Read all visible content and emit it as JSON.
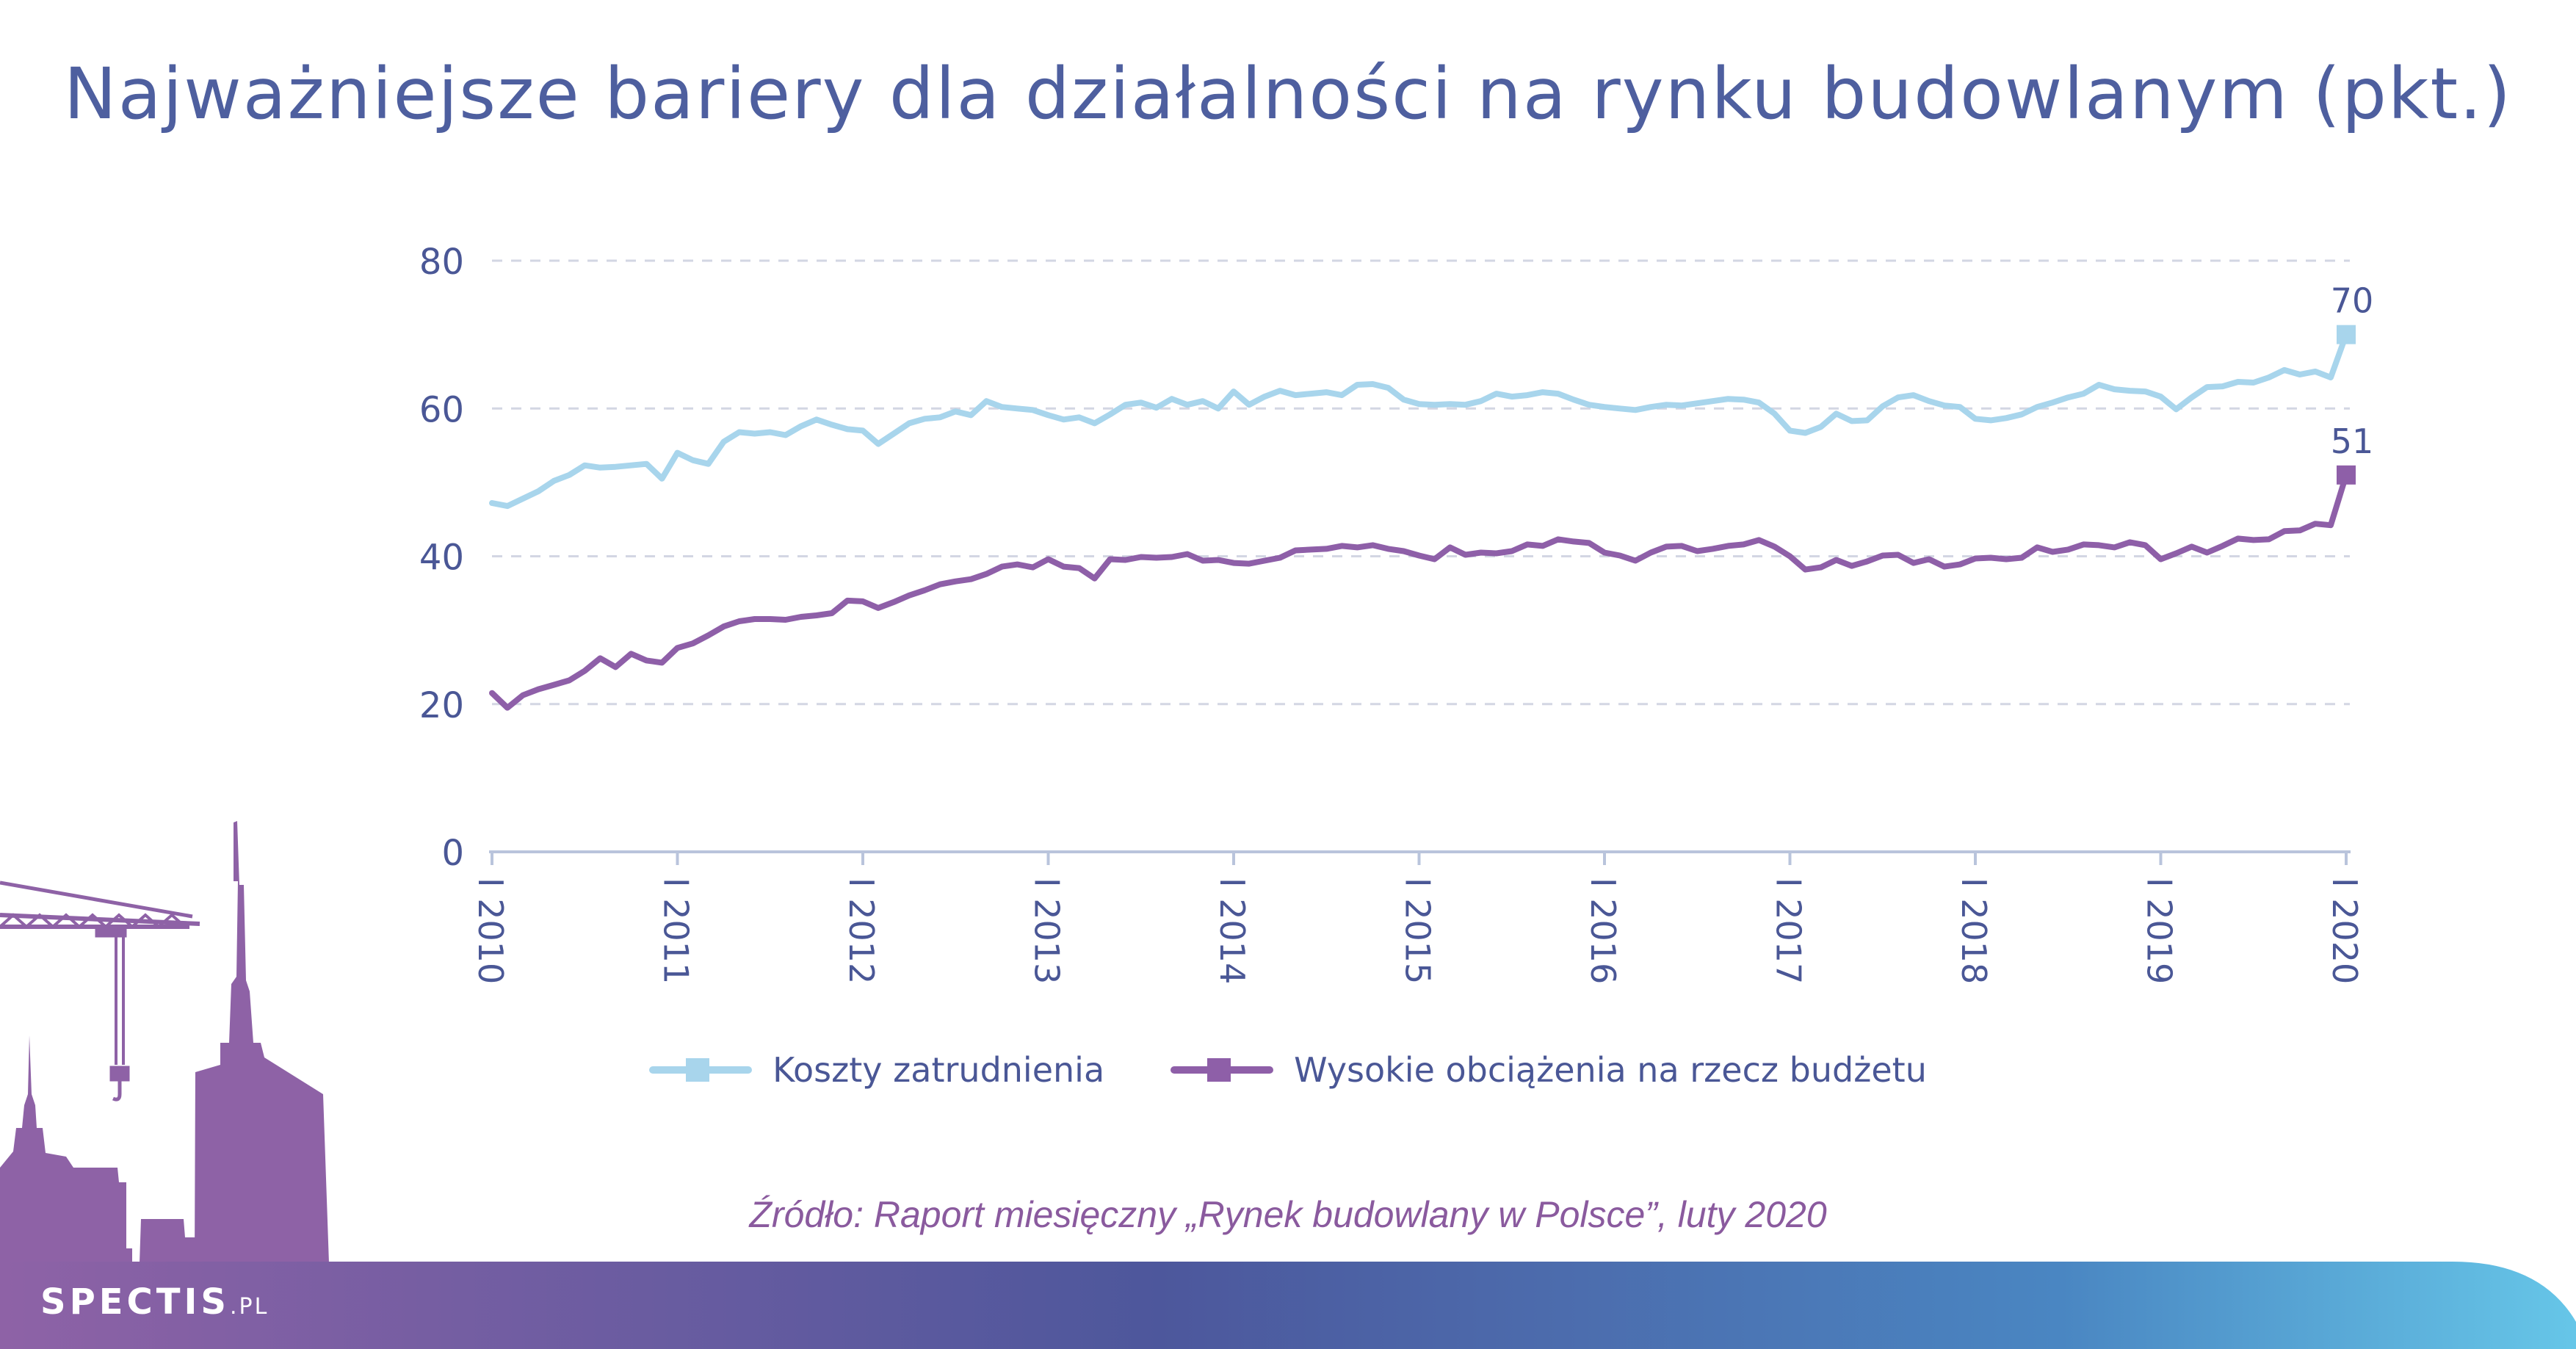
{
  "title": "Najważniejsze bariery dla działalności na rynku budowlanym (pkt.)",
  "source": "Źródło: Raport miesięczny „Rynek budowlany w Polsce”, luty 2020",
  "brand": {
    "name": "SPECTIS",
    "tld": ".PL"
  },
  "colors": {
    "title": "#4e5f9f",
    "series1": "#a8d5ec",
    "series2": "#8e5fa8",
    "axis": "#b9c4dc",
    "grid": "#d3d6e3",
    "ticks": "#4a5796",
    "source": "#8a5a9e"
  },
  "chart_data": {
    "type": "line",
    "title": "Najważniejsze bariery dla działalności na rynku budowlanym (pkt.)",
    "ylim": [
      0,
      80
    ],
    "yticks": [
      0,
      20,
      40,
      60,
      80
    ],
    "grid": true,
    "legend_position": "bottom",
    "xticks": [
      "I 2010",
      "I 2011",
      "I 2012",
      "I 2013",
      "I 2014",
      "I 2015",
      "I 2016",
      "I 2017",
      "I 2018",
      "I 2019",
      "I 2020"
    ],
    "x_start": "2010-01",
    "x_end": "2020-01",
    "series": [
      {
        "name": "Koszty zatrudnienia",
        "color": "#a8d5ec",
        "end_label": "70",
        "values": [
          47.2,
          46.8,
          47.8,
          48.8,
          50.2,
          51.0,
          52.3,
          52.0,
          52.1,
          52.3,
          52.5,
          50.5,
          54.0,
          53.0,
          52.5,
          55.5,
          56.8,
          56.6,
          56.8,
          56.4,
          57.6,
          58.5,
          57.8,
          57.2,
          57.0,
          55.2,
          56.6,
          58.0,
          58.6,
          58.8,
          59.6,
          59.1,
          61.0,
          60.2,
          60.0,
          59.8,
          59.1,
          58.5,
          58.8,
          58.0,
          59.2,
          60.5,
          60.8,
          60.1,
          61.3,
          60.5,
          61.0,
          60.0,
          62.3,
          60.5,
          61.6,
          62.4,
          61.8,
          62.0,
          62.2,
          61.8,
          63.2,
          63.3,
          62.8,
          61.2,
          60.6,
          60.5,
          60.6,
          60.5,
          61.0,
          62.0,
          61.6,
          61.8,
          62.2,
          62.0,
          61.2,
          60.5,
          60.2,
          60.0,
          59.8,
          60.2,
          60.5,
          60.4,
          60.7,
          61.0,
          61.3,
          61.2,
          60.8,
          59.3,
          57.0,
          56.7,
          57.5,
          59.3,
          58.3,
          58.4,
          60.3,
          61.5,
          61.8,
          61.0,
          60.4,
          60.2,
          58.6,
          58.4,
          58.7,
          59.2,
          60.2,
          60.8,
          61.5,
          62.0,
          63.2,
          62.6,
          62.4,
          62.3,
          61.6,
          59.9,
          61.5,
          62.9,
          63.0,
          63.6,
          63.5,
          64.2,
          65.2,
          64.6,
          65.0,
          64.2,
          70.0
        ]
      },
      {
        "name": "Wysokie obciążenia na rzecz budżetu",
        "color": "#8e5fa8",
        "end_label": "51",
        "values": [
          21.5,
          19.5,
          21.2,
          22.0,
          22.6,
          23.2,
          24.5,
          26.2,
          25.0,
          26.8,
          25.9,
          25.6,
          27.6,
          28.2,
          29.3,
          30.5,
          31.2,
          31.5,
          31.5,
          31.4,
          31.8,
          32.0,
          32.3,
          34.0,
          33.9,
          33.0,
          33.8,
          34.7,
          35.4,
          36.2,
          36.6,
          36.9,
          37.6,
          38.6,
          38.9,
          38.5,
          39.6,
          38.6,
          38.4,
          37.0,
          39.6,
          39.5,
          39.9,
          39.8,
          39.9,
          40.3,
          39.4,
          39.5,
          39.1,
          39.0,
          39.4,
          39.8,
          40.8,
          40.9,
          41.0,
          41.4,
          41.2,
          41.5,
          41.0,
          40.7,
          40.1,
          39.6,
          41.2,
          40.2,
          40.5,
          40.4,
          40.7,
          41.6,
          41.4,
          42.3,
          42.0,
          41.8,
          40.5,
          40.1,
          39.4,
          40.5,
          41.3,
          41.4,
          40.7,
          41.0,
          41.4,
          41.6,
          42.2,
          41.3,
          40.0,
          38.2,
          38.5,
          39.5,
          38.7,
          39.3,
          40.1,
          40.2,
          39.1,
          39.6,
          38.6,
          38.9,
          39.7,
          39.8,
          39.6,
          39.8,
          41.2,
          40.6,
          40.9,
          41.6,
          41.5,
          41.2,
          41.9,
          41.5,
          39.6,
          40.4,
          41.3,
          40.5,
          41.4,
          42.4,
          42.2,
          42.3,
          43.4,
          43.5,
          44.4,
          44.2,
          51.0
        ]
      }
    ]
  }
}
